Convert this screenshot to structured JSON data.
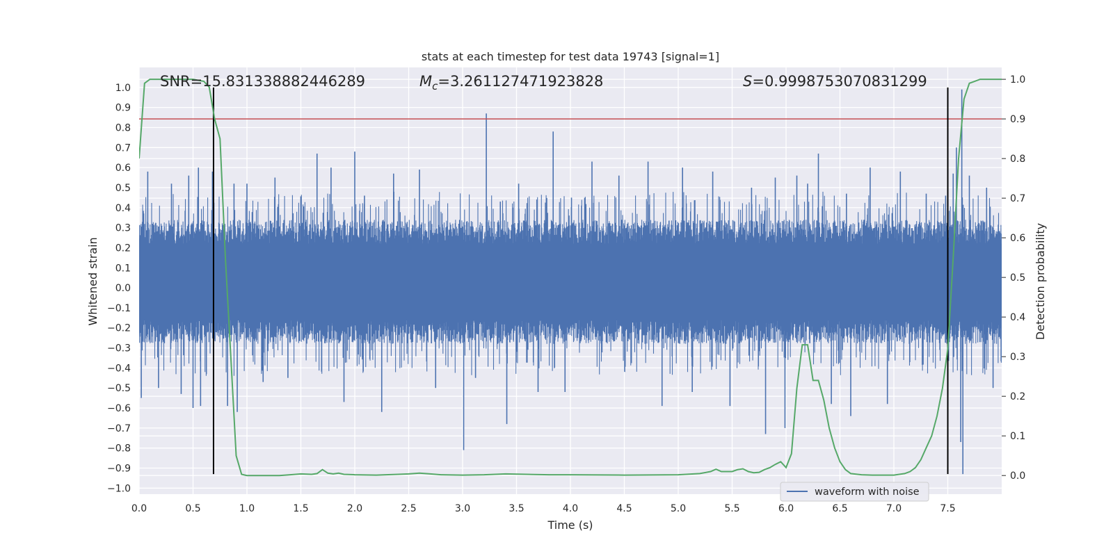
{
  "chart_data": {
    "type": "line",
    "title": "stats at each timestep for test data 19743 [signal=1]",
    "xlabel": "Time (s)",
    "ylabel": "Whitened strain",
    "ylabel_right": "Detection probability",
    "xlim": [
      0.0,
      8.0
    ],
    "ylim": [
      -1.03,
      1.1
    ],
    "ylim_right": [
      -0.047,
      1.03
    ],
    "x_ticks": [
      0.0,
      0.5,
      1.0,
      1.5,
      2.0,
      2.5,
      3.0,
      3.5,
      4.0,
      4.5,
      5.0,
      5.5,
      6.0,
      6.5,
      7.0,
      7.5
    ],
    "x_tick_labels": [
      "0.0",
      "0.5",
      "1.0",
      "1.5",
      "2.0",
      "2.5",
      "3.0",
      "3.5",
      "4.0",
      "4.5",
      "5.0",
      "5.5",
      "6.0",
      "6.5",
      "7.0",
      "7.5"
    ],
    "y_ticks": [
      1.0,
      0.9,
      0.8,
      0.7,
      0.6,
      0.5,
      0.4,
      0.3,
      0.2,
      0.1,
      0.0,
      -0.1,
      -0.2,
      -0.3,
      -0.4,
      -0.5,
      -0.6,
      -0.7,
      -0.8,
      -0.9,
      -1.0
    ],
    "y_tick_labels": [
      "1.0",
      "0.9",
      "0.8",
      "0.7",
      "0.6",
      "0.5",
      "0.4",
      "0.3",
      "0.2",
      "0.1",
      "0.0",
      "−0.1",
      "−0.2",
      "−0.3",
      "−0.4",
      "−0.5",
      "−0.6",
      "−0.7",
      "−0.8",
      "−0.9",
      "−1.0"
    ],
    "y_ticks_right": [
      1.0,
      0.9,
      0.8,
      0.7,
      0.6,
      0.5,
      0.4,
      0.3,
      0.2,
      0.1,
      0.0
    ],
    "y_tick_labels_right": [
      "1.0",
      "0.9",
      "0.8",
      "0.7",
      "0.6",
      "0.5",
      "0.4",
      "0.3",
      "0.2",
      "0.1",
      "0.0"
    ],
    "grid": true,
    "legend_placement": "lower-right",
    "annotations": {
      "snr": "SNR=15.831338882446289",
      "mc_prefix": "M",
      "mc_sub": "c",
      "mc_value": "=3.261127471923828",
      "s_prefix": "S",
      "s_value": "=0.9998753070831299"
    },
    "vertical_lines": [
      0.69,
      7.5
    ],
    "vertical_line_range": [
      -0.93,
      1.0
    ],
    "threshold": 0.9,
    "series": [
      {
        "name": "waveform with noise",
        "axis": "left",
        "color": "#4c72b0",
        "note_band": "dense noise between about -0.35 and 0.45",
        "spikes": [
          [
            0.02,
            -0.55
          ],
          [
            0.08,
            0.58
          ],
          [
            0.18,
            -0.5
          ],
          [
            0.3,
            0.52
          ],
          [
            0.39,
            -0.53
          ],
          [
            0.46,
            0.56
          ],
          [
            0.5,
            -0.6
          ],
          [
            0.55,
            0.6
          ],
          [
            0.57,
            -0.59
          ],
          [
            0.68,
            0.58
          ],
          [
            0.82,
            -0.59
          ],
          [
            0.88,
            0.52
          ],
          [
            0.91,
            -0.62
          ],
          [
            1.0,
            0.52
          ],
          [
            1.15,
            -0.47
          ],
          [
            1.26,
            0.55
          ],
          [
            1.38,
            -0.45
          ],
          [
            1.65,
            0.67
          ],
          [
            1.78,
            0.6
          ],
          [
            1.9,
            -0.57
          ],
          [
            2.0,
            0.68
          ],
          [
            2.09,
            0.46
          ],
          [
            2.25,
            -0.62
          ],
          [
            2.36,
            0.57
          ],
          [
            2.6,
            0.59
          ],
          [
            2.75,
            -0.5
          ],
          [
            3.01,
            -0.81
          ],
          [
            3.12,
            -0.45
          ],
          [
            3.22,
            0.87
          ],
          [
            3.35,
            0.43
          ],
          [
            3.41,
            -0.68
          ],
          [
            3.52,
            0.52
          ],
          [
            3.7,
            -0.52
          ],
          [
            3.84,
            0.78
          ],
          [
            3.95,
            -0.52
          ],
          [
            4.01,
            0.45
          ],
          [
            4.2,
            0.63
          ],
          [
            4.45,
            0.56
          ],
          [
            4.72,
            0.63
          ],
          [
            4.85,
            -0.59
          ],
          [
            5.04,
            0.6
          ],
          [
            5.13,
            -0.52
          ],
          [
            5.32,
            0.58
          ],
          [
            5.48,
            -0.59
          ],
          [
            5.68,
            0.5
          ],
          [
            5.81,
            -0.73
          ],
          [
            5.9,
            0.55
          ],
          [
            5.99,
            -0.7
          ],
          [
            6.1,
            0.56
          ],
          [
            6.2,
            0.52
          ],
          [
            6.3,
            0.67
          ],
          [
            6.42,
            -0.58
          ],
          [
            6.56,
            0.47
          ],
          [
            6.6,
            -0.64
          ],
          [
            6.78,
            0.6
          ],
          [
            6.94,
            -0.58
          ],
          [
            7.06,
            0.58
          ],
          [
            7.3,
            0.47
          ],
          [
            7.48,
            0.46
          ],
          [
            7.55,
            0.57
          ],
          [
            7.58,
            0.7
          ],
          [
            7.62,
            -0.77
          ],
          [
            7.63,
            0.99
          ],
          [
            7.64,
            -0.93
          ],
          [
            7.7,
            0.56
          ],
          [
            7.86,
            0.5
          ],
          [
            7.92,
            -0.5
          ]
        ]
      },
      {
        "name": "",
        "axis": "right",
        "color": "#55a868",
        "x": [
          0.0,
          0.05,
          0.1,
          0.2,
          0.3,
          0.4,
          0.5,
          0.6,
          0.65,
          0.7,
          0.75,
          0.8,
          0.85,
          0.9,
          0.95,
          1.0,
          1.1,
          1.2,
          1.3,
          1.4,
          1.5,
          1.6,
          1.65,
          1.7,
          1.75,
          1.8,
          1.85,
          1.9,
          2.0,
          2.2,
          2.4,
          2.5,
          2.6,
          2.7,
          2.8,
          3.0,
          3.2,
          3.4,
          3.6,
          3.8,
          4.0,
          4.5,
          5.0,
          5.2,
          5.3,
          5.35,
          5.4,
          5.5,
          5.55,
          5.6,
          5.65,
          5.7,
          5.75,
          5.8,
          5.85,
          5.9,
          5.95,
          6.0,
          6.05,
          6.1,
          6.15,
          6.2,
          6.25,
          6.3,
          6.35,
          6.4,
          6.45,
          6.5,
          6.55,
          6.6,
          6.7,
          6.8,
          7.0,
          7.05,
          7.1,
          7.15,
          7.2,
          7.25,
          7.3,
          7.35,
          7.4,
          7.45,
          7.5,
          7.55,
          7.6,
          7.65,
          7.7,
          7.8,
          8.0
        ],
        "y": [
          0.8,
          0.99,
          1.0,
          1.0,
          1.0,
          1.0,
          1.0,
          0.995,
          0.98,
          0.9,
          0.85,
          0.55,
          0.3,
          0.05,
          0.003,
          0.0,
          0.0,
          0.0,
          0.0,
          0.002,
          0.004,
          0.003,
          0.005,
          0.015,
          0.006,
          0.004,
          0.006,
          0.003,
          0.002,
          0.001,
          0.003,
          0.004,
          0.006,
          0.004,
          0.002,
          0.001,
          0.002,
          0.004,
          0.003,
          0.002,
          0.002,
          0.001,
          0.002,
          0.005,
          0.01,
          0.016,
          0.01,
          0.01,
          0.015,
          0.017,
          0.01,
          0.007,
          0.008,
          0.015,
          0.02,
          0.028,
          0.035,
          0.02,
          0.055,
          0.22,
          0.33,
          0.33,
          0.24,
          0.24,
          0.19,
          0.12,
          0.07,
          0.035,
          0.015,
          0.005,
          0.002,
          0.001,
          0.001,
          0.003,
          0.005,
          0.01,
          0.02,
          0.04,
          0.07,
          0.1,
          0.15,
          0.22,
          0.32,
          0.55,
          0.8,
          0.95,
          0.99,
          1.0,
          1.0
        ]
      }
    ]
  }
}
